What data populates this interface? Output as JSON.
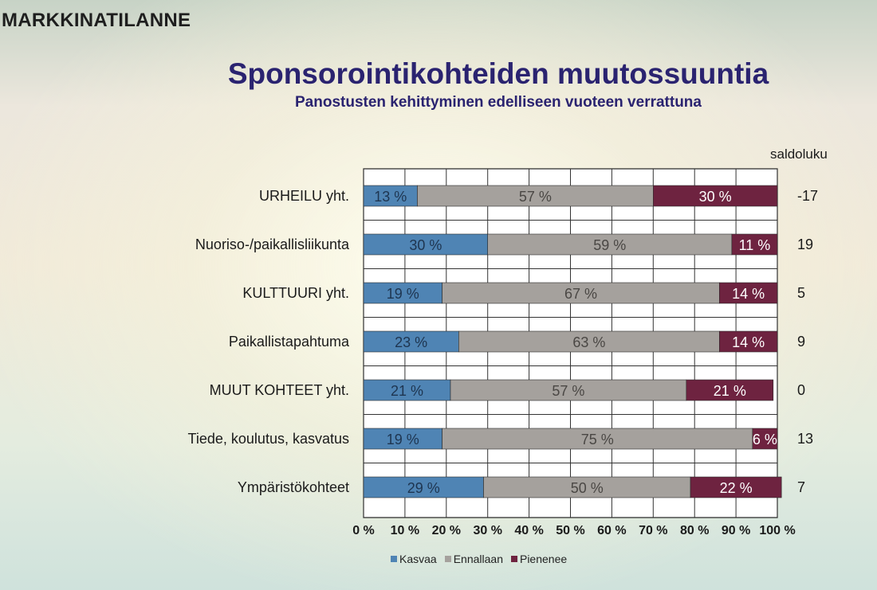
{
  "slide_label": "MARKKINATILANNE",
  "chart_data": {
    "type": "bar",
    "orientation": "horizontal",
    "stacked": "percent",
    "title": "Sponsorointikohteiden muutossuuntia",
    "subtitle": "Panostusten kehittyminen edelliseen vuoteen verrattuna",
    "categories": [
      "URHEILU yht.",
      "Nuoriso-/paikallisliikunta",
      "KULTTUURI yht.",
      "Paikallistapahtuma",
      "MUUT KOHTEET yht.",
      "Tiede, koulutus, kasvatus",
      "Ympäristökohteet"
    ],
    "series": [
      {
        "name": "Kasvaa",
        "color": "#4f84b4",
        "values": [
          13,
          30,
          19,
          23,
          21,
          19,
          29
        ],
        "labels": [
          "13 %",
          "30 %",
          "19 %",
          "23 %",
          "21 %",
          "19 %",
          "29 %"
        ]
      },
      {
        "name": "Ennallaan",
        "color": "#a5a19d",
        "values": [
          57,
          59,
          67,
          63,
          57,
          75,
          50
        ],
        "labels": [
          "57 %",
          "59 %",
          "67 %",
          "63 %",
          "57 %",
          "75 %",
          "50 %"
        ]
      },
      {
        "name": "Pienenee",
        "color": "#6e2340",
        "values": [
          30,
          11,
          14,
          14,
          21,
          6,
          22
        ],
        "labels": [
          "30 %",
          "11 %",
          "14 %",
          "14 %",
          "21 %",
          "6 %",
          "22 %"
        ]
      }
    ],
    "xlim": [
      0,
      100
    ],
    "x_ticks": [
      "0 %",
      "10 %",
      "20 %",
      "30 %",
      "40 %",
      "50 %",
      "60 %",
      "70 %",
      "80 %",
      "90 %",
      "100 %"
    ],
    "grid": true,
    "legend_position": "bottom",
    "saldo_header": "saldoluku",
    "saldo_values": [
      "-17",
      "19",
      "5",
      "9",
      "0",
      "13",
      "7"
    ]
  }
}
